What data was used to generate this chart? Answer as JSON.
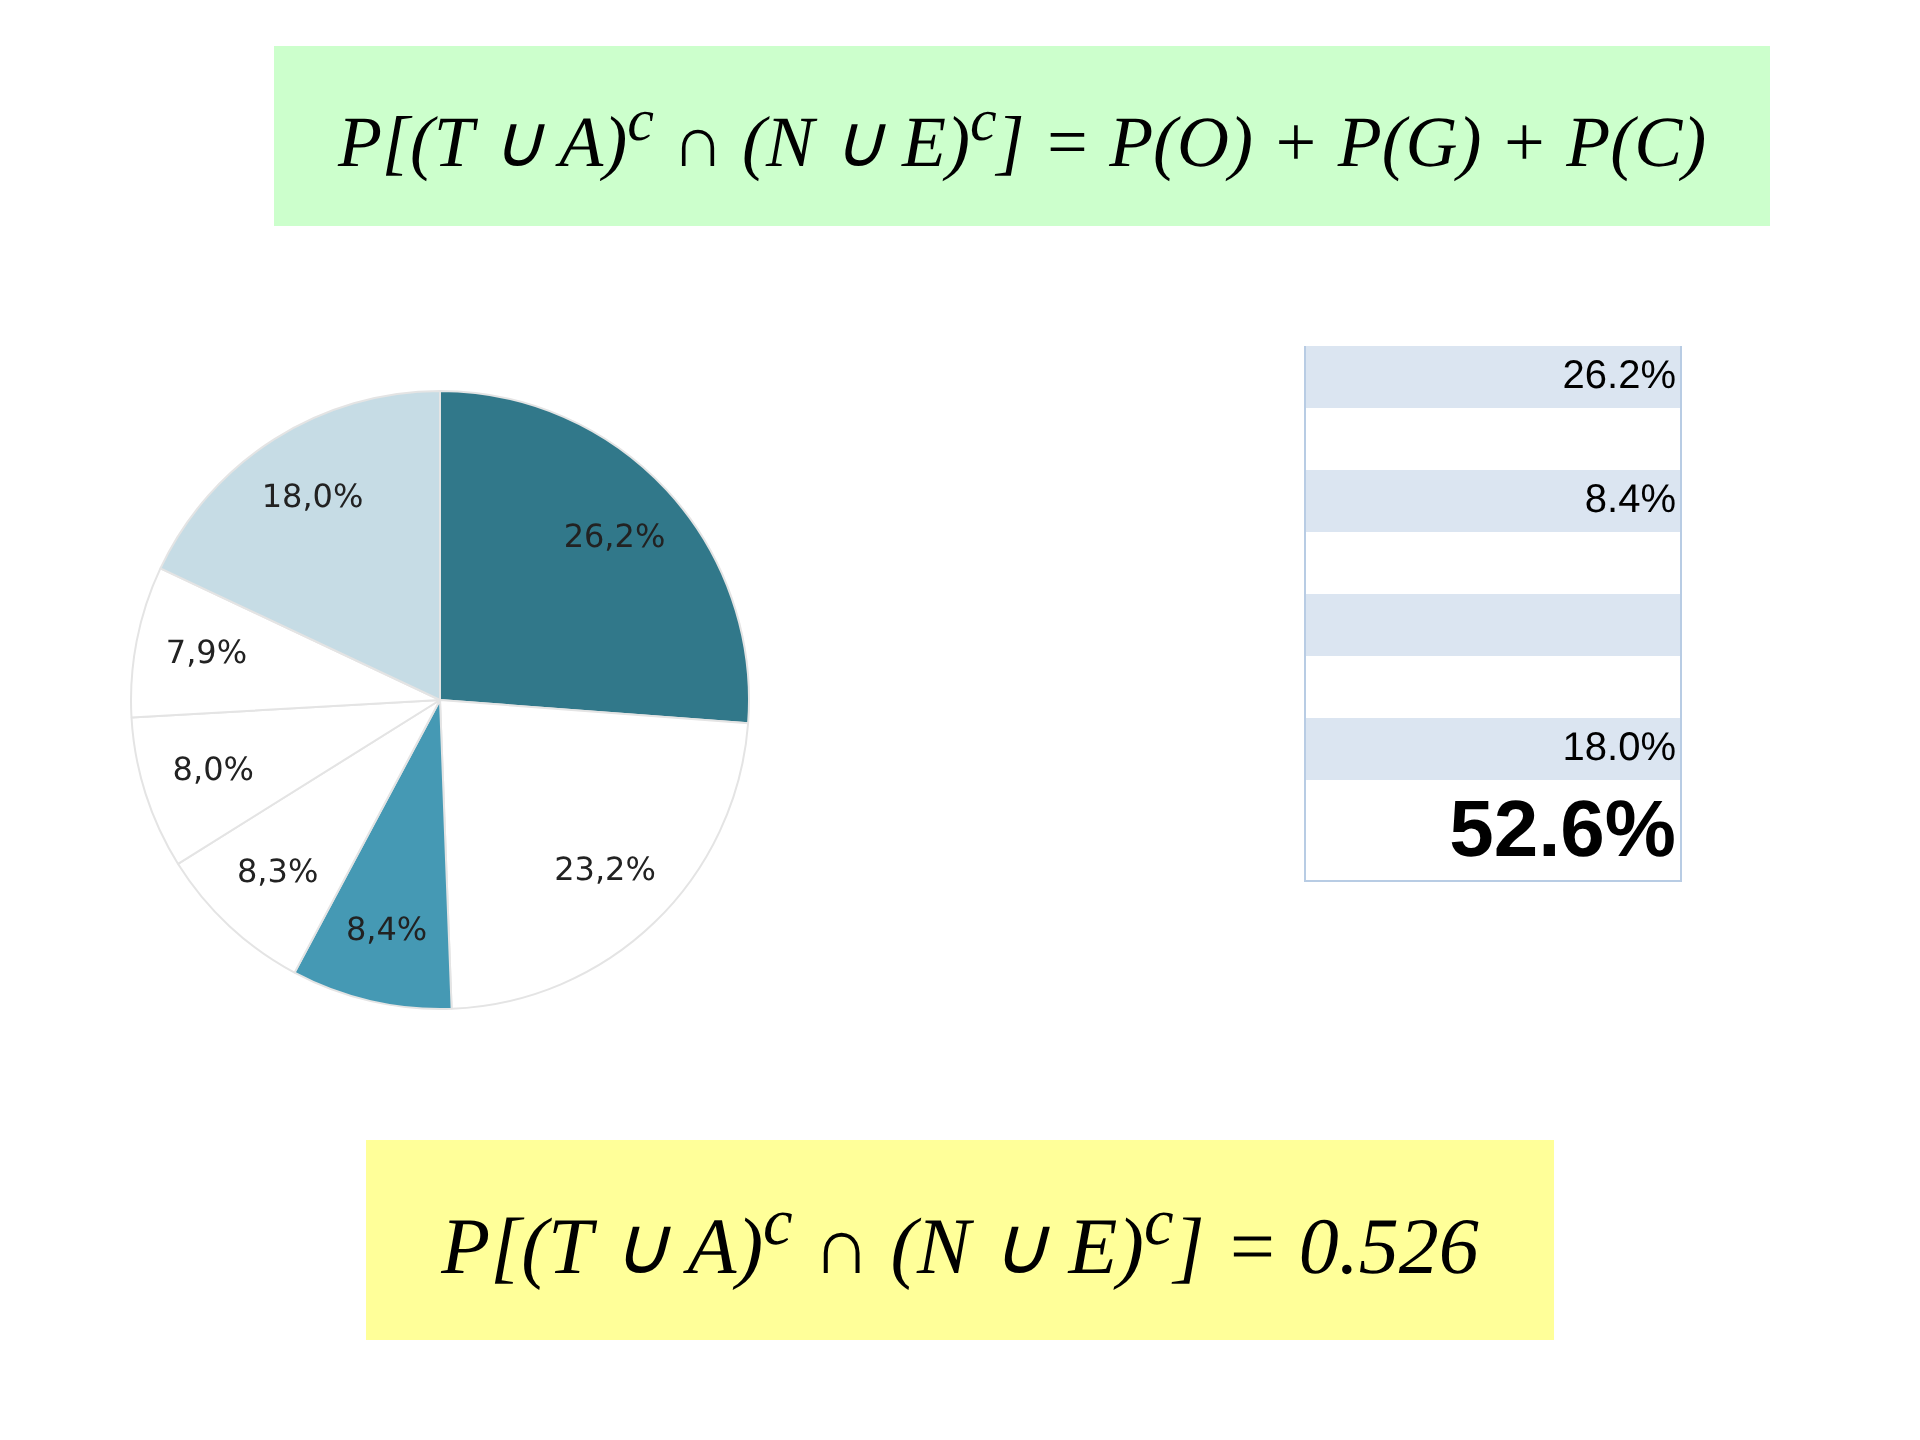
{
  "chart_data": {
    "type": "pie",
    "title": "P[(T ∪ A)$^{c}$ ∩ (N ∪ E)$^{c}$] = P(O) + P(G) + P(C)",
    "categories": [
      null,
      null,
      null,
      null,
      null,
      null,
      null
    ],
    "values": [
      26.2,
      23.2,
      8.4,
      8.3,
      8.0,
      7.9,
      18.0
    ],
    "colors": [
      "#31788a",
      "#ffffff",
      "#4599b4",
      "#ffffff",
      "#ffffff",
      "#ffffff",
      "#c6dce5"
    ],
    "value_labels": [
      "26,2%",
      "23,2%",
      "8,4%",
      "8,3%",
      "8,0%",
      "7,9%",
      "18,0%"
    ],
    "annotations": [
      "26.2%",
      "8.4%",
      "18.0%",
      "52.6%",
      "P[(T ∪ A)$^{c}$ ∩ (N ∪ E)$^{c}$] = 0.526"
    ],
    "legend": false
  }
}
